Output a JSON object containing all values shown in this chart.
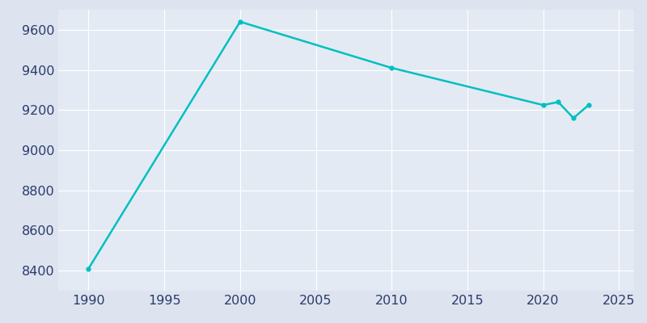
{
  "years": [
    1990,
    2000,
    2010,
    2020,
    2021,
    2022,
    2023
  ],
  "population": [
    8410,
    9640,
    9410,
    9225,
    9240,
    9160,
    9225
  ],
  "line_color": "#00C0C0",
  "marker": "o",
  "marker_size": 3.5,
  "line_width": 1.8,
  "background_color": "#DDE4EF",
  "plot_bg_color": "#E4EAF4",
  "grid_color": "#ffffff",
  "xlim": [
    1988,
    2026
  ],
  "ylim": [
    8300,
    9700
  ],
  "xticks": [
    1990,
    1995,
    2000,
    2005,
    2010,
    2015,
    2020,
    2025
  ],
  "yticks": [
    8400,
    8600,
    8800,
    9000,
    9200,
    9400,
    9600
  ],
  "tick_label_color": "#2B3A6B",
  "tick_label_size": 11.5
}
